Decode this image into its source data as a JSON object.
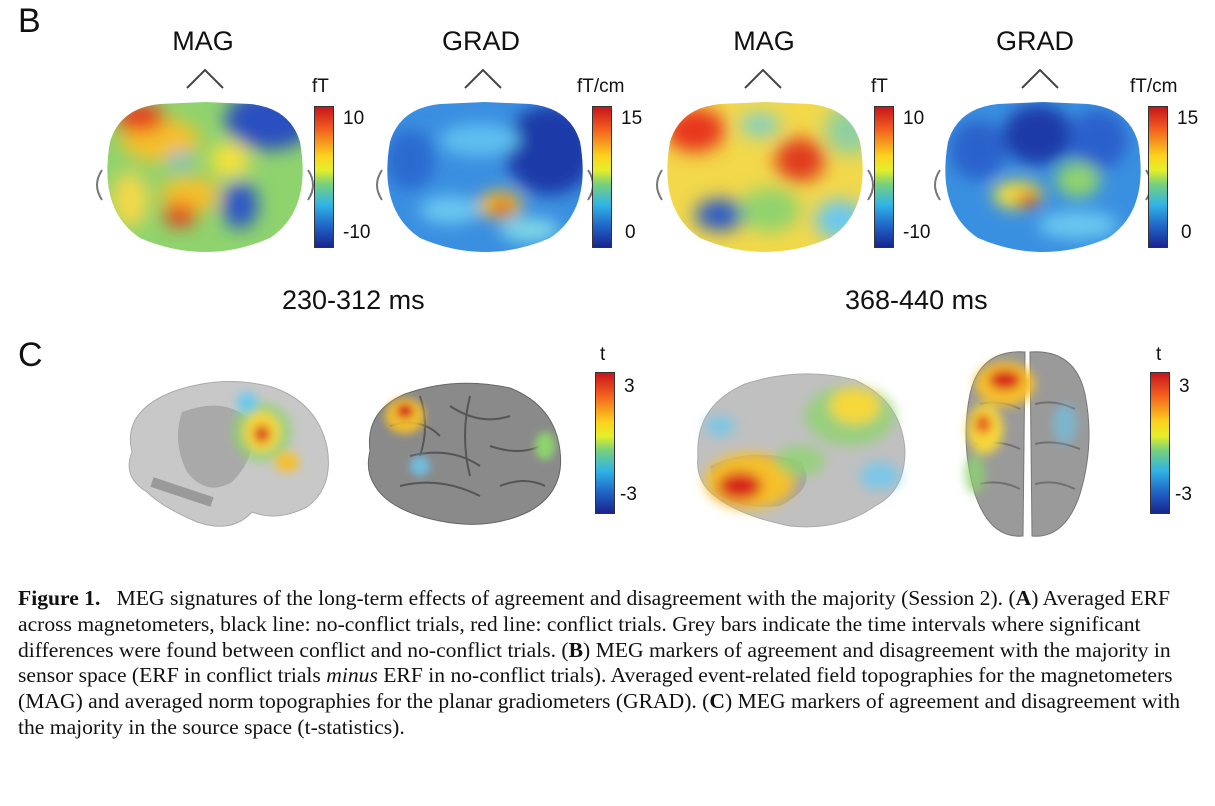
{
  "panel_b": {
    "letter": "B",
    "maps": [
      {
        "label": "MAG",
        "unit": "fT",
        "max_tick": "10",
        "min_tick": "-10"
      },
      {
        "label": "GRAD",
        "unit": "fT/cm",
        "max_tick": "15",
        "min_tick": "0"
      },
      {
        "label": "MAG",
        "unit": "fT",
        "max_tick": "10",
        "min_tick": "-10"
      },
      {
        "label": "GRAD",
        "unit": "fT/cm",
        "max_tick": "15",
        "min_tick": "0"
      }
    ],
    "time_windows": [
      "230-312 ms",
      "368-440 ms"
    ]
  },
  "panel_c": {
    "letter": "C",
    "colorbars": [
      {
        "unit": "t",
        "max_tick": "3",
        "min_tick": "-3"
      },
      {
        "unit": "t",
        "max_tick": "3",
        "min_tick": "-3"
      }
    ]
  },
  "caption": {
    "figure_label": "Figure 1.",
    "sentence_1": "MEG signatures of the long-term effects of agreement and disagreement with the majority (Session 2). (",
    "a_letter": "A",
    "a_text": ") Averaged ERF across magnetometers, black line: no-conflict trials, red line: conflict trials. Grey bars indicate the time intervals where significant differences were found between conflict and no-conflict trials. (",
    "b_letter": "B",
    "b_text_1": ") MEG markers of agreement and disagreement with the majority in sensor space (ERF in conflict trials ",
    "b_minus": "minus",
    "b_text_2": " ERF in no-conflict trials). Averaged event-related field topographies for the magnetometers (MAG) and averaged norm topographies for the planar gradiometers (GRAD). (",
    "c_letter": "C",
    "c_text": ") MEG markers of agreement and disagreement with the majority in the  source space (t-statistics)."
  }
}
